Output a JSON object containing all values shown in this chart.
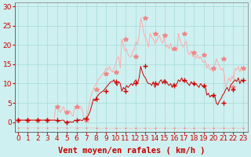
{
  "xlabel": "Vent moyen/en rafales ( km/h )",
  "bg_color": "#cff0f0",
  "grid_color": "#aadddd",
  "line_color_mean": "#cc0000",
  "line_color_gust": "#ffaaaa",
  "marker_color_mean": "#cc0000",
  "marker_color_gust": "#ee8888",
  "xlim": [
    -0.3,
    23.5
  ],
  "ylim": [
    -2.5,
    31
  ],
  "yticks": [
    0,
    5,
    10,
    15,
    20,
    25,
    30
  ],
  "xticks": [
    0,
    1,
    2,
    3,
    4,
    5,
    6,
    7,
    8,
    9,
    10,
    11,
    12,
    13,
    14,
    15,
    16,
    17,
    18,
    19,
    20,
    21,
    22,
    23
  ],
  "xlabel_fontsize": 7.5,
  "tick_fontsize": 6.5,
  "xlabel_color": "#cc0000",
  "tick_color": "#cc0000",
  "axis_color": "#999999",
  "mean_hourly": [
    0.5,
    0.5,
    0.5,
    0.5,
    0.5,
    0.0,
    0.5,
    1.0,
    6.0,
    8.0,
    10.5,
    8.0,
    10.0,
    14.5,
    10.0,
    10.5,
    9.5,
    11.0,
    10.0,
    9.5,
    7.0,
    5.0,
    8.5,
    11.0
  ],
  "gust_hourly": [
    0.5,
    0.5,
    0.5,
    0.5,
    4.0,
    2.5,
    4.0,
    0.5,
    8.5,
    12.5,
    13.0,
    21.5,
    17.0,
    27.0,
    23.0,
    22.5,
    19.0,
    23.0,
    18.0,
    17.5,
    14.0,
    16.5,
    9.0,
    14.0
  ],
  "mean_dense": [
    0.5,
    0.5,
    0.5,
    0.5,
    0.5,
    0.5,
    0.5,
    0.5,
    0.5,
    0.5,
    0.5,
    0.5,
    0.5,
    0.5,
    0.5,
    0.5,
    0.5,
    0.5,
    0.5,
    0.5,
    0.5,
    0.5,
    0.5,
    0.5,
    0.5,
    0.3,
    0.2,
    0.4,
    0.5,
    0.5,
    0.0,
    0.0,
    0.1,
    0.1,
    0.0,
    0.0,
    0.5,
    0.3,
    0.5,
    0.6,
    0.5,
    0.4,
    1.0,
    0.8,
    1.2,
    2.0,
    3.0,
    4.5,
    6.0,
    5.5,
    6.5,
    7.0,
    7.5,
    7.8,
    8.0,
    8.5,
    9.0,
    9.5,
    10.0,
    10.5,
    10.5,
    11.0,
    10.0,
    9.5,
    10.5,
    10.0,
    8.0,
    9.0,
    8.5,
    9.5,
    9.0,
    9.5,
    10.0,
    9.5,
    10.5,
    11.0,
    10.0,
    11.5,
    14.5,
    13.0,
    12.0,
    11.5,
    10.5,
    10.0,
    10.0,
    9.5,
    10.5,
    9.0,
    10.0,
    9.5,
    10.5,
    11.0,
    10.0,
    11.0,
    10.5,
    10.0,
    9.5,
    10.0,
    9.0,
    10.0,
    9.5,
    10.0,
    11.0,
    10.5,
    11.5,
    10.5,
    11.0,
    10.5,
    10.0,
    9.5,
    10.5,
    10.0,
    9.5,
    10.0,
    9.5,
    9.0,
    10.0,
    9.5,
    9.0,
    9.5,
    7.0,
    7.5,
    6.5,
    7.0,
    6.5,
    7.0,
    5.0,
    4.5,
    5.5,
    6.0,
    7.0,
    7.5,
    8.5,
    9.0,
    8.0,
    9.5,
    10.0,
    10.5,
    11.0,
    10.5,
    11.5,
    10.0,
    11.0,
    10.5
  ],
  "gust_dense": [
    0.5,
    0.5,
    0.5,
    0.5,
    0.5,
    0.5,
    0.5,
    0.5,
    0.5,
    0.5,
    0.5,
    0.5,
    0.5,
    0.5,
    0.5,
    0.5,
    0.5,
    0.5,
    0.5,
    0.5,
    0.5,
    0.5,
    0.5,
    0.5,
    4.0,
    3.5,
    3.0,
    2.5,
    3.5,
    4.0,
    2.5,
    2.0,
    2.5,
    3.0,
    2.0,
    1.5,
    4.0,
    3.5,
    4.5,
    3.5,
    4.0,
    3.0,
    0.5,
    1.0,
    2.0,
    4.0,
    6.0,
    7.5,
    8.5,
    9.5,
    10.0,
    11.0,
    11.5,
    12.0,
    12.5,
    13.0,
    14.0,
    13.5,
    14.5,
    13.5,
    13.0,
    14.0,
    15.0,
    16.5,
    17.0,
    14.0,
    21.5,
    20.0,
    18.5,
    19.0,
    17.5,
    17.0,
    17.0,
    18.5,
    19.0,
    21.0,
    20.0,
    22.5,
    27.0,
    25.5,
    23.0,
    22.0,
    21.0,
    19.5,
    23.0,
    22.0,
    21.5,
    20.5,
    21.0,
    22.0,
    22.5,
    21.0,
    20.5,
    22.0,
    19.5,
    20.0,
    19.0,
    20.5,
    18.5,
    19.0,
    19.5,
    18.5,
    23.0,
    21.5,
    20.0,
    19.5,
    20.5,
    21.0,
    18.0,
    17.5,
    18.5,
    17.0,
    17.5,
    16.5,
    17.5,
    16.5,
    17.0,
    16.0,
    15.5,
    16.0,
    14.0,
    15.0,
    13.5,
    14.0,
    13.0,
    14.5,
    16.5,
    15.5,
    14.5,
    13.5,
    14.0,
    12.5,
    9.0,
    10.0,
    11.5,
    10.5,
    12.0,
    11.0,
    14.0,
    13.5,
    14.5,
    13.0,
    14.5,
    13.5
  ],
  "dir_dense_y": [
    -1.5,
    -1.5,
    -1.5,
    -1.5,
    -1.5,
    -1.5,
    -1.5,
    -1.5,
    -1.5,
    -1.5,
    -1.5,
    -1.5,
    -1.5,
    -1.5,
    -1.5,
    -1.5,
    -1.5,
    -1.5,
    -1.5,
    -1.5,
    -1.5,
    -1.5,
    -1.5,
    -1.5,
    -1.5,
    -1.5,
    -1.5,
    -1.5,
    -1.5,
    -1.5,
    -1.5,
    -1.5,
    -1.5,
    -1.5,
    -1.5,
    -1.5,
    -1.5,
    -1.5,
    -1.5,
    -1.5,
    -1.5,
    -1.5,
    -1.5,
    -1.5,
    -1.5,
    -1.5,
    -1.5,
    -1.5,
    -1.5,
    -1.5,
    -1.7,
    -1.6,
    -1.5,
    -1.7,
    -1.6,
    -1.5,
    -1.6,
    -1.7,
    -1.5,
    -1.6,
    -1.7,
    -1.5,
    -1.7,
    -1.6,
    -1.5,
    -1.7,
    -1.6,
    -1.5,
    -1.6,
    -1.7,
    -1.5,
    -1.6,
    -1.7,
    -1.5,
    -1.7,
    -1.6,
    -1.5,
    -1.7,
    -1.6,
    -1.5,
    -1.6,
    -1.7,
    -1.5,
    -1.6,
    -1.7,
    -1.5,
    -1.7,
    -1.6,
    -1.5,
    -1.7,
    -1.6,
    -1.5,
    -1.6,
    -1.7,
    -1.5,
    -1.6,
    -1.7,
    -1.5,
    -1.7,
    -1.6,
    -1.5,
    -1.7,
    -1.6,
    -1.5,
    -1.6,
    -1.7,
    -1.5,
    -1.6,
    -1.7,
    -1.5,
    -1.7,
    -1.6,
    -1.5,
    -1.7,
    -1.6,
    -1.5,
    -1.6,
    -1.7,
    -1.5,
    -1.6,
    -1.7,
    -1.5,
    -1.7,
    -1.6,
    -1.5,
    -1.7,
    -1.6,
    -1.5,
    -1.6,
    -1.7,
    -1.5,
    -1.6,
    -1.7,
    -1.5,
    -1.7,
    -1.6,
    -1.5,
    -1.7,
    -1.6,
    -1.5,
    -1.6,
    -1.7,
    -1.5,
    -1.6
  ]
}
